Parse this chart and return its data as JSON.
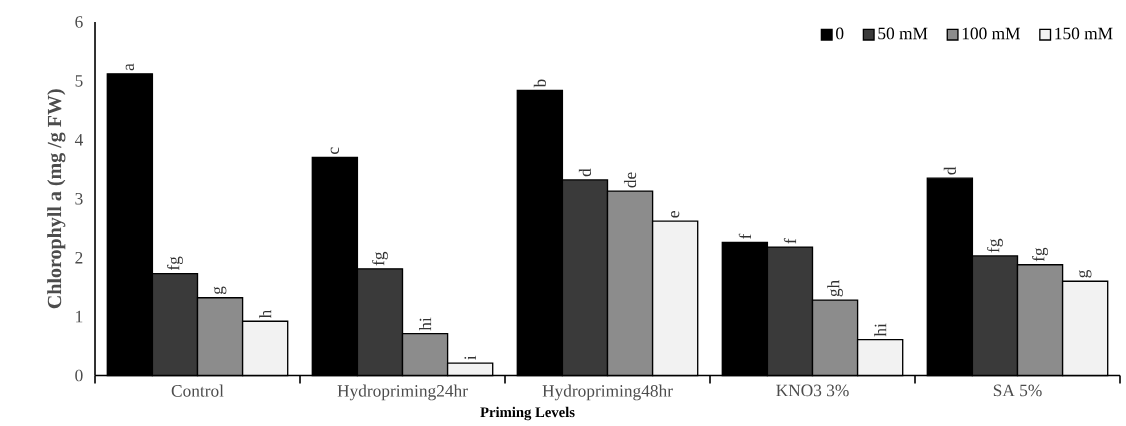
{
  "chart_data": {
    "type": "bar",
    "xlabel": "Priming Levels",
    "ylabel": "Chlorophyll a (mg /g FW)",
    "categories": [
      "Control",
      "Hydropriming24hr",
      "Hydropriming48hr",
      "KNO3 3%",
      "SA 5%"
    ],
    "series": [
      {
        "name": "0",
        "color": "#000000",
        "values": [
          5.12,
          3.7,
          4.84,
          2.26,
          3.35
        ],
        "value_labels": [
          "a",
          "c",
          "b",
          "f",
          "d"
        ]
      },
      {
        "name": "50 mM",
        "color": "#3a3a3a",
        "values": [
          1.73,
          1.81,
          3.32,
          2.18,
          2.03
        ],
        "value_labels": [
          "fg",
          "fg",
          "d",
          "f",
          "fg"
        ]
      },
      {
        "name": "100 mM",
        "color": "#8c8c8c",
        "values": [
          1.32,
          0.71,
          3.13,
          1.28,
          1.88
        ],
        "value_labels": [
          "g",
          "hi",
          "de",
          "gh",
          "fg"
        ]
      },
      {
        "name": "150 mM",
        "color": "#f2f2f2",
        "values": [
          0.92,
          0.21,
          2.62,
          0.61,
          1.6
        ],
        "value_labels": [
          "h",
          "i",
          "e",
          "hi",
          "g"
        ]
      }
    ],
    "ylim": [
      0,
      6
    ],
    "yticks": [
      0,
      1,
      2,
      3,
      4,
      5,
      6
    ],
    "grid": false,
    "legend": "top right"
  }
}
